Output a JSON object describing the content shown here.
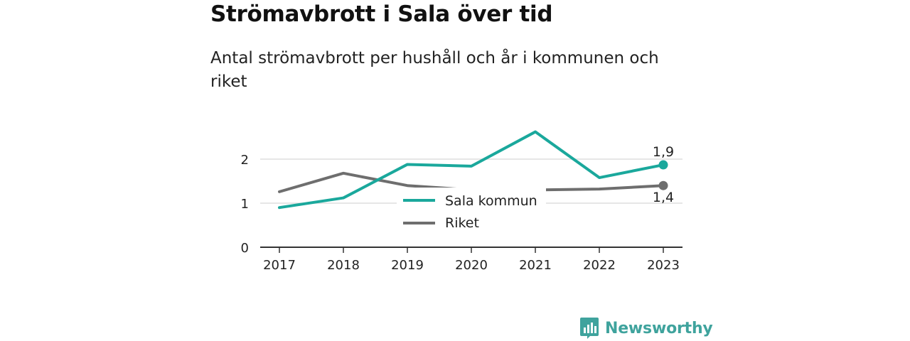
{
  "title": "Strömavbrott i Sala över tid",
  "subtitle": "Antal strömavbrott per hushåll och år i kommunen och riket",
  "brand": "Newsworthy",
  "colors": {
    "sala": "#1aa89c",
    "riket": "#6e6e6e",
    "grid": "#dddddd",
    "axis": "#333333",
    "brand": "#3fa39d"
  },
  "chart_data": {
    "type": "line",
    "x": [
      "2017",
      "2018",
      "2019",
      "2020",
      "2021",
      "2022",
      "2023"
    ],
    "ylim": [
      0,
      2
    ],
    "yticks": [
      "0",
      "1",
      "2"
    ],
    "grid": true,
    "legend_position": "center",
    "series": [
      {
        "name": "Sala kommun",
        "values": [
          0.9,
          1.12,
          1.88,
          1.84,
          2.62,
          1.58,
          1.87
        ],
        "end_label": "1,9"
      },
      {
        "name": "Riket",
        "values": [
          1.26,
          1.68,
          1.4,
          1.3,
          1.3,
          1.32,
          1.4
        ],
        "end_label": "1,4"
      }
    ]
  }
}
